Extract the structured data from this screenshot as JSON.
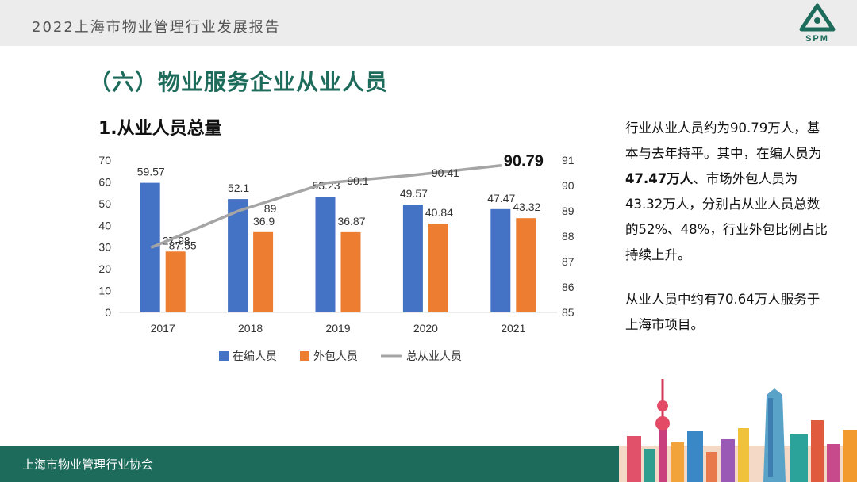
{
  "header": {
    "title": "2022上海市物业管理行业发展报告",
    "logo_text": "SPM"
  },
  "section_title": "（六）物业服务企业从业人员",
  "chart_title": "1.从业人员总量",
  "description": {
    "p1_a": "行业从业人员约为90.79万人，基本与去年持平。其中，在编人员为",
    "p1_bold": "47.47万人",
    "p1_b": "、市场外包人员为43.32万人，分别占从业人员总数的52%、48%，行业外包比例占比持续上升。",
    "p2": "从业人员中约有70.64万人服务于上海市项目。"
  },
  "footer": {
    "text": "上海市物业管理行业协会"
  },
  "colors": {
    "bar1": "#4472c4",
    "bar2": "#ed7d31",
    "line": "#a5a5a5",
    "brand": "#1d6b5a"
  },
  "chart_data": {
    "type": "bar",
    "categories": [
      "2017",
      "2018",
      "2019",
      "2020",
      "2021"
    ],
    "series": [
      {
        "name": "在编人员",
        "type": "bar",
        "axis": "left",
        "values": [
          59.57,
          52.1,
          53.23,
          49.57,
          47.47
        ],
        "labels": [
          "59.57",
          "52.1",
          "53.23",
          "49.57",
          "47.47"
        ]
      },
      {
        "name": "外包人员",
        "type": "bar",
        "axis": "left",
        "values": [
          27.98,
          36.9,
          36.87,
          40.84,
          43.32
        ],
        "labels": [
          "27.98",
          "36.9",
          "36.87",
          "40.84",
          "43.32"
        ]
      },
      {
        "name": "总从业人员",
        "type": "line",
        "axis": "right",
        "values": [
          87.55,
          89,
          90.1,
          90.41,
          90.79
        ],
        "labels": [
          "87.55",
          "89",
          "90.1",
          "90.41",
          "90.79"
        ]
      }
    ],
    "ylim_left": [
      0,
      70
    ],
    "yticks_left": [
      "0",
      "10",
      "20",
      "30",
      "40",
      "50",
      "60",
      "70"
    ],
    "ylim_right": [
      85,
      91
    ],
    "yticks_right": [
      "85",
      "86",
      "87",
      "88",
      "89",
      "90",
      "91"
    ],
    "legend_position": "bottom",
    "grid": false
  }
}
